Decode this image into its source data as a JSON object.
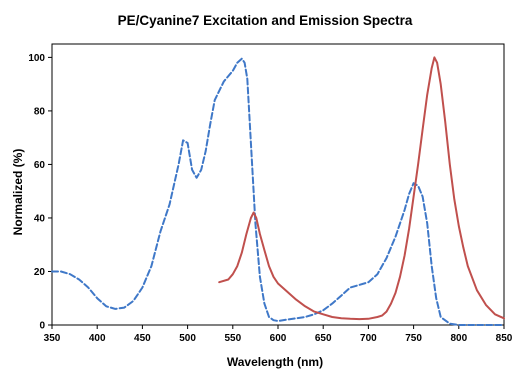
{
  "chart_data": {
    "type": "line",
    "title": "PE/Cyanine7 Excitation and Emission Spectra",
    "xlabel": "Wavelength (nm)",
    "ylabel": "Normalized (%)",
    "xlim": [
      350,
      850
    ],
    "ylim": [
      0,
      105
    ],
    "xticks": [
      "350",
      "400",
      "450",
      "500",
      "550",
      "600",
      "650",
      "700",
      "750",
      "800",
      "850"
    ],
    "yticks": [
      "0",
      "20",
      "40",
      "60",
      "80",
      "100"
    ],
    "grid": false,
    "legend": "none",
    "series": [
      {
        "color": "#3f78c8",
        "style": "dashed",
        "x": [
          350,
          360,
          370,
          380,
          390,
          400,
          410,
          420,
          430,
          440,
          450,
          460,
          470,
          480,
          490,
          495,
          500,
          505,
          510,
          515,
          520,
          525,
          530,
          540,
          550,
          555,
          560,
          563,
          566,
          570,
          575,
          580,
          585,
          590,
          595,
          600,
          610,
          620,
          630,
          640,
          650,
          660,
          670,
          680,
          690,
          700,
          710,
          720,
          730,
          740,
          745,
          750,
          755,
          760,
          765,
          770,
          775,
          780,
          790,
          800,
          810,
          820,
          830,
          840,
          850
        ],
        "y": [
          20,
          20,
          19,
          17,
          14,
          10,
          7,
          6,
          6.5,
          9,
          14,
          22,
          35,
          45,
          60,
          69,
          68,
          58,
          55,
          58,
          65,
          75,
          84,
          91,
          95,
          98,
          99.5,
          98,
          92,
          68,
          38,
          18,
          8,
          3,
          1.8,
          1.5,
          2,
          2.5,
          3,
          4,
          5.5,
          8,
          11,
          14,
          15,
          16,
          19,
          25,
          33,
          43,
          49,
          53,
          52,
          48,
          38,
          22,
          10,
          3,
          0.5,
          0,
          0,
          0,
          0,
          0,
          0
        ]
      },
      {
        "color": "#c0504d",
        "style": "solid",
        "x": [
          535,
          545,
          550,
          555,
          560,
          565,
          570,
          573,
          576,
          580,
          585,
          590,
          595,
          600,
          605,
          610,
          620,
          630,
          640,
          650,
          660,
          670,
          680,
          690,
          700,
          710,
          715,
          720,
          725,
          730,
          735,
          740,
          745,
          750,
          755,
          760,
          765,
          770,
          773,
          776,
          780,
          785,
          790,
          795,
          800,
          805,
          810,
          820,
          830,
          840,
          850
        ],
        "y": [
          16,
          17,
          19,
          22,
          27,
          34,
          40,
          42,
          40,
          34,
          28,
          22,
          18,
          15.5,
          14,
          12.5,
          9.5,
          7,
          5,
          4,
          3,
          2.5,
          2.3,
          2.2,
          2.3,
          3,
          3.5,
          5,
          8,
          12,
          18,
          26,
          36,
          48,
          60,
          73,
          86,
          96,
          100,
          98,
          90,
          76,
          60,
          47,
          37,
          29,
          22,
          13,
          7.5,
          4,
          2.5
        ]
      }
    ]
  }
}
